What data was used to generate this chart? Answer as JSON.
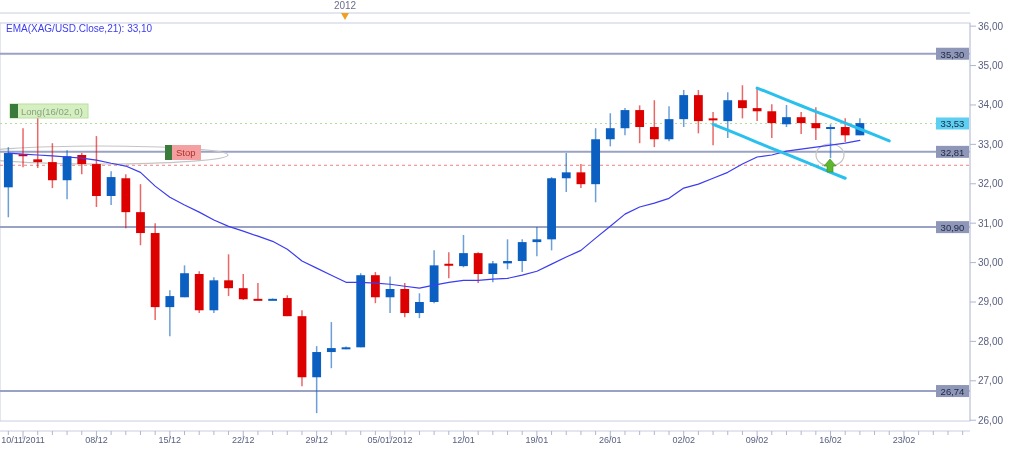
{
  "chart_data": {
    "type": "candlestick",
    "categories": [
      null,
      "10/11/2011",
      null,
      null,
      null,
      null,
      "08/12",
      null,
      null,
      null,
      null,
      "15/12",
      null,
      null,
      null,
      null,
      "22/12",
      null,
      null,
      null,
      null,
      "29/12",
      null,
      null,
      null,
      null,
      "05/01/2012",
      null,
      null,
      null,
      null,
      "12/01",
      null,
      null,
      null,
      null,
      "19/01",
      null,
      null,
      null,
      null,
      "26/01",
      null,
      null,
      null,
      null,
      "02/02",
      null,
      null,
      null,
      null,
      "09/02",
      null,
      null,
      null,
      null,
      "16/02",
      null,
      null,
      null,
      null,
      "23/02",
      null,
      null,
      null,
      null
    ],
    "ohlc": [
      [
        31.91,
        32.93,
        31.15,
        32.78
      ],
      [
        32.75,
        33.41,
        32.42,
        32.7
      ],
      [
        32.62,
        33.66,
        32.4,
        32.55
      ],
      [
        32.55,
        33.03,
        31.89,
        32.09
      ],
      [
        32.09,
        32.85,
        31.61,
        32.7
      ],
      [
        32.73,
        32.78,
        32.24,
        32.5
      ],
      [
        32.5,
        33.21,
        31.41,
        31.69
      ],
      [
        31.69,
        32.32,
        31.46,
        32.17
      ],
      [
        32.14,
        32.24,
        30.87,
        31.28
      ],
      [
        31.28,
        31.99,
        30.44,
        30.75
      ],
      [
        30.75,
        31.0,
        28.54,
        28.87
      ],
      [
        28.87,
        29.3,
        28.13,
        29.15
      ],
      [
        29.12,
        29.93,
        29.12,
        29.73
      ],
      [
        29.71,
        29.78,
        28.72,
        28.79
      ],
      [
        28.79,
        29.63,
        28.72,
        29.55
      ],
      [
        29.55,
        30.21,
        29.15,
        29.35
      ],
      [
        29.35,
        29.71,
        29.05,
        29.07
      ],
      [
        29.08,
        29.48,
        29.05,
        29.06
      ],
      [
        29.06,
        29.09,
        29.05,
        29.08
      ],
      [
        29.1,
        29.17,
        28.64,
        28.64
      ],
      [
        28.64,
        28.79,
        26.86,
        27.09
      ],
      [
        27.09,
        27.88,
        26.18,
        27.73
      ],
      [
        27.73,
        28.49,
        27.32,
        27.83
      ],
      [
        27.82,
        27.87,
        27.8,
        27.85
      ],
      [
        27.85,
        29.73,
        27.85,
        29.68
      ],
      [
        29.68,
        29.76,
        28.97,
        29.12
      ],
      [
        29.12,
        29.65,
        28.72,
        29.33
      ],
      [
        29.33,
        29.48,
        28.61,
        28.72
      ],
      [
        28.72,
        29.22,
        28.59,
        29.0
      ],
      [
        29.0,
        30.31,
        28.97,
        29.93
      ],
      [
        29.97,
        30.26,
        29.6,
        29.95
      ],
      [
        29.91,
        30.7,
        29.88,
        30.24
      ],
      [
        30.24,
        30.26,
        29.48,
        29.71
      ],
      [
        29.71,
        30.04,
        29.5,
        29.98
      ],
      [
        29.98,
        30.59,
        29.83,
        30.04
      ],
      [
        30.04,
        30.59,
        29.76,
        30.52
      ],
      [
        30.52,
        30.9,
        30.16,
        30.59
      ],
      [
        30.59,
        32.17,
        30.31,
        32.14
      ],
      [
        32.14,
        32.78,
        31.79,
        32.29
      ],
      [
        32.29,
        32.5,
        31.89,
        31.99
      ],
      [
        31.99,
        33.41,
        31.53,
        33.13
      ],
      [
        33.13,
        33.79,
        32.95,
        33.41
      ],
      [
        33.41,
        33.92,
        33.23,
        33.87
      ],
      [
        33.87,
        33.99,
        33.03,
        33.44
      ],
      [
        33.44,
        34.12,
        32.93,
        33.13
      ],
      [
        33.13,
        33.97,
        33.08,
        33.64
      ],
      [
        33.64,
        34.38,
        33.44,
        34.25
      ],
      [
        34.25,
        34.38,
        33.28,
        33.59
      ],
      [
        33.66,
        33.82,
        32.98,
        33.62
      ],
      [
        33.59,
        34.32,
        33.16,
        34.12
      ],
      [
        34.12,
        34.5,
        33.66,
        33.92
      ],
      [
        33.92,
        34.43,
        33.59,
        33.84
      ],
      [
        33.84,
        34.02,
        33.16,
        33.54
      ],
      [
        33.51,
        34.0,
        33.44,
        33.69
      ],
      [
        33.69,
        33.82,
        33.26,
        33.54
      ],
      [
        33.54,
        33.94,
        33.11,
        33.41
      ],
      [
        33.42,
        33.51,
        32.65,
        33.44
      ],
      [
        33.44,
        33.66,
        33.06,
        33.23
      ],
      [
        33.23,
        33.66,
        33.23,
        33.54
      ],
      null,
      null,
      null,
      null,
      null,
      null,
      null
    ],
    "colors": [
      "#0a5fc0",
      "#dd0000",
      "#dd0000",
      "#dd0000",
      "#0a5fc0",
      "#dd0000",
      "#dd0000",
      "#0a5fc0",
      "#dd0000",
      "#dd0000",
      "#dd0000",
      "#0a5fc0",
      "#0a5fc0",
      "#dd0000",
      "#0a5fc0",
      "#dd0000",
      "#dd0000",
      "#dd0000",
      "#0a5fc0",
      "#dd0000",
      "#dd0000",
      "#0a5fc0",
      "#0a5fc0",
      "#0a5fc0",
      "#0a5fc0",
      "#dd0000",
      "#0a5fc0",
      "#dd0000",
      "#0a5fc0",
      "#0a5fc0",
      "#dd0000",
      "#0a5fc0",
      "#dd0000",
      "#0a5fc0",
      "#0a5fc0",
      "#0a5fc0",
      "#0a5fc0",
      "#0a5fc0",
      "#0a5fc0",
      "#dd0000",
      "#0a5fc0",
      "#0a5fc0",
      "#0a5fc0",
      "#dd0000",
      "#dd0000",
      "#0a5fc0",
      "#0a5fc0",
      "#dd0000",
      "#dd0000",
      "#0a5fc0",
      "#dd0000",
      "#dd0000",
      "#dd0000",
      "#0a5fc0",
      "#dd0000",
      "#dd0000",
      "#0a5fc0",
      "#dd0000",
      "#0a5fc0",
      null,
      null,
      null,
      null,
      null,
      null,
      null
    ],
    "series": [
      {
        "type": "line",
        "name": "EMA(XAG/USD.Close,21): 33,10",
        "color": "#3c3cf0",
        "values": [
          32.78,
          32.75,
          32.73,
          32.71,
          32.68,
          32.65,
          32.6,
          32.52,
          32.45,
          32.29,
          31.94,
          31.66,
          31.46,
          31.28,
          31.08,
          30.92,
          30.8,
          30.67,
          30.54,
          30.34,
          30.04,
          29.86,
          29.68,
          29.5,
          29.5,
          29.48,
          29.45,
          29.4,
          29.35,
          29.43,
          29.5,
          29.55,
          29.55,
          29.58,
          29.6,
          29.68,
          29.78,
          29.96,
          30.14,
          30.31,
          30.62,
          30.92,
          31.23,
          31.41,
          31.51,
          31.63,
          31.89,
          31.99,
          32.14,
          32.29,
          32.5,
          32.68,
          32.73,
          32.83,
          32.88,
          32.93,
          32.98,
          33.03,
          33.1,
          null,
          null,
          null,
          null,
          null,
          null,
          null
        ]
      },
      {
        "type": "line",
        "color": "#29c0ee",
        "values": [
          null,
          null,
          null,
          null,
          null,
          null,
          null,
          null,
          null,
          null,
          null,
          null,
          null,
          null,
          null,
          null,
          null,
          null,
          null,
          null,
          null,
          null,
          null,
          null,
          null,
          null,
          null,
          null,
          null,
          null,
          null,
          null,
          null,
          null,
          null,
          null,
          null,
          null,
          null,
          null,
          null,
          null,
          null,
          null,
          null,
          null,
          null,
          null,
          null,
          null,
          null,
          34.43,
          34.28,
          34.13,
          33.98,
          33.83,
          33.69,
          33.54,
          33.39,
          33.24,
          33.09,
          null,
          null,
          null,
          null,
          null
        ]
      },
      {
        "type": "line",
        "color": "#29c0ee",
        "values": [
          null,
          null,
          null,
          null,
          null,
          null,
          null,
          null,
          null,
          null,
          null,
          null,
          null,
          null,
          null,
          null,
          null,
          null,
          null,
          null,
          null,
          null,
          null,
          null,
          null,
          null,
          null,
          null,
          null,
          null,
          null,
          null,
          null,
          null,
          null,
          null,
          null,
          null,
          null,
          null,
          null,
          null,
          null,
          null,
          null,
          null,
          null,
          null,
          33.51,
          33.36,
          33.21,
          33.05,
          32.9,
          32.75,
          32.6,
          32.45,
          32.29,
          32.14,
          null,
          null,
          null,
          null,
          null,
          null,
          null,
          null
        ]
      }
    ],
    "ylim": [
      25.98,
      36.08
    ],
    "yticks": [
      {
        "value": 26,
        "label": "26,00"
      },
      {
        "value": 27,
        "label": "27,00"
      },
      {
        "value": 28,
        "label": "28,00"
      },
      {
        "value": 29,
        "label": "29,00"
      },
      {
        "value": 30,
        "label": "30,00"
      },
      {
        "value": 31,
        "label": "31,00"
      },
      {
        "value": 32,
        "label": "32,00"
      },
      {
        "value": 33,
        "label": "33,00"
      },
      {
        "value": 34,
        "label": "34,00"
      },
      {
        "value": 35,
        "label": "35,00"
      },
      {
        "value": 36,
        "label": "36,00"
      }
    ],
    "ref_lines": [
      {
        "axis": "y",
        "value": 35.3,
        "label": "35,30",
        "color": "#9aa2c4",
        "line_style": "solid"
      },
      {
        "axis": "y",
        "value": 33.53,
        "label": "33,53",
        "color": "#b5dd9a",
        "line_style": "dotted"
      },
      {
        "axis": "y",
        "value": 32.81,
        "label": "32,81",
        "color": "#9aa2c4",
        "line_style": "solid"
      },
      {
        "axis": "y",
        "value": 32.47,
        "label": null,
        "color": "#f08080",
        "line_style": "dashed"
      },
      {
        "axis": "y",
        "value": 30.9,
        "label": "30,90",
        "color": "#9aa2c4",
        "line_style": "solid"
      },
      {
        "axis": "y",
        "value": 26.74,
        "label": "26,74",
        "color": "#9aa2c4",
        "line_style": "solid"
      }
    ],
    "annotations": [
      "2012",
      "Long(16/02, 0)",
      "Stop"
    ]
  }
}
